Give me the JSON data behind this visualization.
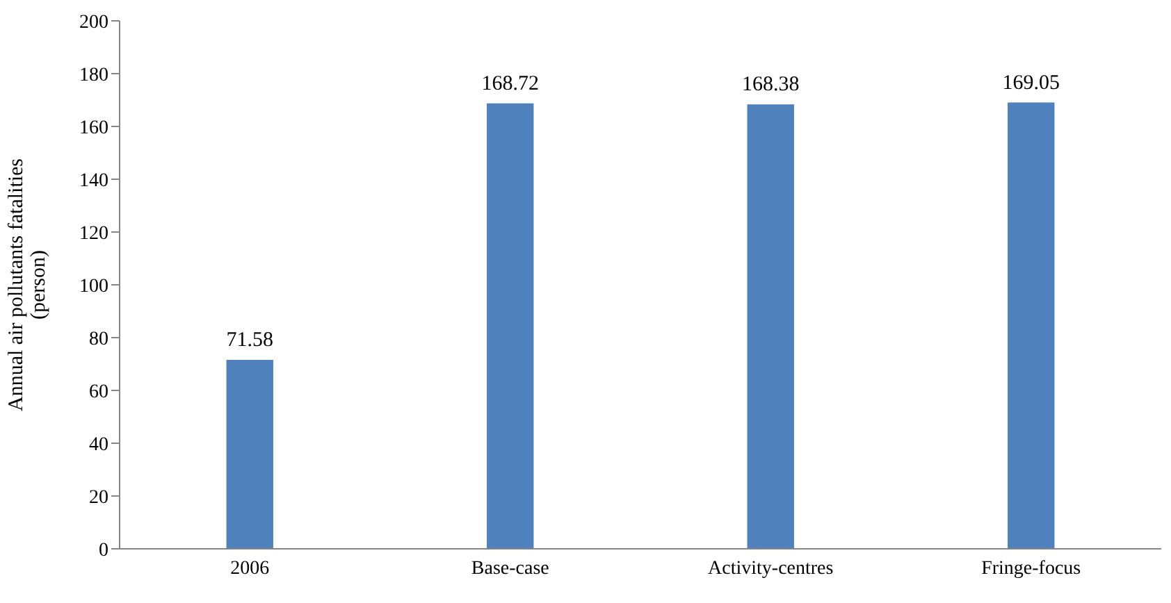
{
  "chart_data": {
    "type": "bar",
    "ylabel": "Annual air pollutants fatalities\n(person)",
    "categories": [
      "2006",
      "Base-case",
      "Activity-centres",
      "Fringe-focus"
    ],
    "values": [
      71.58,
      168.72,
      168.38,
      169.05
    ],
    "color": "#4f81bd",
    "ylim": [
      0,
      200
    ],
    "yticks": [
      0,
      20,
      40,
      60,
      80,
      100,
      120,
      140,
      160,
      180,
      200
    ],
    "grid": false,
    "legend": false,
    "data_labels": true
  }
}
